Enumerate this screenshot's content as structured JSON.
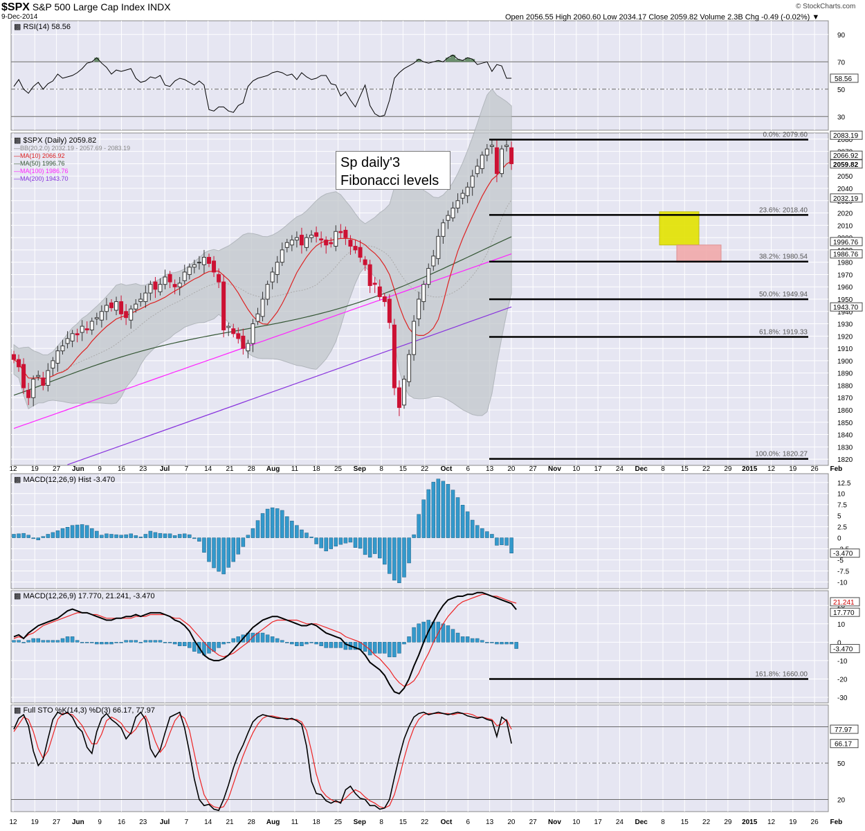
{
  "header": {
    "symbol": "$SPX",
    "name": "S&P 500 Large Cap Index",
    "exchange": "INDX",
    "date": "9-Dec-2014",
    "ohlc_line": "Open 2056.55  High 2060.60  Low 2034.17  Close 2059.82  Volume 2.3B  Chg -0.49 (-0.02%) ▼",
    "copyright": "© StockCharts.com"
  },
  "annotation": {
    "line1": "Sp daily'3",
    "line2": "Fibonacci levels"
  },
  "colors": {
    "panel_bg": "#e6e6f2",
    "grid": "#ffffff",
    "price_up": "#333333",
    "price_down": "#cc1133",
    "ma10": "#dd2222",
    "ma50": "#335533",
    "ma100": "#ff22ff",
    "ma200": "#8833dd",
    "bb": "#999999",
    "macd_hist": "#3399cc",
    "signal": "#ee2222",
    "fib": "#000000",
    "box_yellow": "#e3e300",
    "box_pink": "#f2aaaa"
  },
  "x_axis": {
    "labels": [
      "12",
      "19",
      "27",
      "Jun",
      "9",
      "16",
      "23",
      "Jul",
      "7",
      "14",
      "21",
      "28",
      "Aug",
      "11",
      "18",
      "25",
      "Sep",
      "8",
      "15",
      "22",
      "Oct",
      "6",
      "13",
      "20",
      "27",
      "Nov",
      "10",
      "17",
      "24",
      "Dec",
      "8",
      "15",
      "22",
      "29",
      "2015",
      "12",
      "19",
      "26",
      "Feb"
    ]
  },
  "chart_data": [
    {
      "type": "line",
      "title": "RSI(14) 58.56",
      "ylim": [
        20,
        100
      ],
      "y_ticks": [
        90,
        70,
        50,
        30
      ],
      "reference_lines": [
        70,
        50,
        30
      ],
      "last_value_label": "58.56",
      "values": [
        52,
        57,
        50,
        47,
        52,
        55,
        50,
        54,
        56,
        61,
        58,
        59,
        60,
        62,
        65,
        69,
        70,
        73,
        69,
        66,
        61,
        64,
        63,
        64,
        65,
        58,
        55,
        56,
        59,
        58,
        60,
        53,
        52,
        56,
        58,
        57,
        55,
        53,
        56,
        53,
        35,
        34,
        37,
        37,
        34,
        33,
        38,
        40,
        52,
        56,
        58,
        59,
        60,
        62,
        63,
        62,
        60,
        61,
        57,
        62,
        59,
        57,
        58,
        60,
        60,
        54,
        53,
        45,
        48,
        42,
        37,
        45,
        53,
        38,
        32,
        30,
        31,
        42,
        58,
        62,
        65,
        67,
        69,
        72,
        70,
        69,
        70,
        71,
        70,
        73,
        75,
        72,
        71,
        73,
        72,
        68,
        69,
        70,
        63,
        68,
        67,
        58,
        58
      ]
    },
    {
      "type": "candlestick",
      "title": "$SPX (Daily) 2059.82",
      "ylim": [
        1815,
        2085
      ],
      "y_ticks": [
        1820,
        1830,
        1840,
        1850,
        1860,
        1870,
        1880,
        1890,
        1900,
        1910,
        1920,
        1930,
        1940,
        1950,
        1960,
        1970,
        1980,
        1990,
        2000,
        2010,
        2020,
        2030,
        2040,
        2050,
        2060,
        2070,
        2080
      ],
      "legend": [
        {
          "name": "$SPX (Daily) 2059.82",
          "color": "#000000"
        },
        {
          "name": "BB(20,2.0) 2032.19 - 2057.69 - 2083.19",
          "color": "#888888"
        },
        {
          "name": "MA(10) 2066.92",
          "color": "#dd2222"
        },
        {
          "name": "MA(50) 1996.76",
          "color": "#335533"
        },
        {
          "name": "MA(100) 1986.76",
          "color": "#ff22ff"
        },
        {
          "name": "MA(200) 1943.70",
          "color": "#8833dd"
        }
      ],
      "right_labels": [
        {
          "text": "2083.19",
          "value": 2083.19,
          "style": "plain"
        },
        {
          "text": "2066.92",
          "value": 2066.92,
          "style": "plain"
        },
        {
          "text": "2059.82",
          "value": 2059.82,
          "style": "bold"
        },
        {
          "text": "2032.19",
          "value": 2032.19,
          "style": "plain"
        },
        {
          "text": "1996.76",
          "value": 1996.76,
          "style": "plain"
        },
        {
          "text": "1986.76",
          "value": 1986.76,
          "style": "plain"
        },
        {
          "text": "1943.70",
          "value": 1943.7,
          "style": "plain"
        }
      ],
      "fibonacci_levels": [
        {
          "label": "0.0%: 2079.60",
          "value": 2079.6
        },
        {
          "label": "23.6%: 2018.40",
          "value": 2018.4
        },
        {
          "label": "38.2%: 1980.54",
          "value": 1980.54
        },
        {
          "label": "50.0%: 1949.94",
          "value": 1949.94
        },
        {
          "label": "61.8%: 1919.33",
          "value": 1919.33
        },
        {
          "label": "100.0%: 1820.27",
          "value": 1820.27
        }
      ],
      "target_boxes": [
        {
          "color": "yellow",
          "y_range": [
            1994,
            2021
          ]
        },
        {
          "color": "pink",
          "y_range": [
            1980,
            1994
          ]
        }
      ],
      "closes": [
        1901,
        1895,
        1878,
        1870,
        1885,
        1888,
        1880,
        1892,
        1900,
        1908,
        1912,
        1918,
        1922,
        1921,
        1928,
        1925,
        1932,
        1935,
        1940,
        1945,
        1943,
        1948,
        1938,
        1935,
        1942,
        1946,
        1950,
        1955,
        1962,
        1958,
        1962,
        1968,
        1964,
        1960,
        1963,
        1972,
        1976,
        1978,
        1980,
        1984,
        1979,
        1972,
        1964,
        1925,
        1928,
        1922,
        1918,
        1910,
        1914,
        1930,
        1938,
        1950,
        1962,
        1972,
        1980,
        1990,
        1996,
        1998,
        2000,
        1994,
        2000,
        2002,
        2001,
        1998,
        1994,
        1995,
        2005,
        2004,
        2000,
        1993,
        1990,
        1984,
        1978,
        1961,
        1962,
        1952,
        1948,
        1931,
        1878,
        1862,
        1885,
        1905,
        1932,
        1950,
        1962,
        1975,
        1985,
        2001,
        2012,
        2018,
        2024,
        2030,
        2036,
        2041,
        2050,
        2058,
        2067,
        2072,
        2075,
        2052,
        2072,
        2075,
        2060
      ]
    },
    {
      "type": "bar",
      "title": "MACD(12,26,9) Hist -3.470",
      "ylim": [
        -11.5,
        14.5
      ],
      "y_ticks": [
        12.5,
        10,
        7.5,
        5,
        2.5,
        0,
        -2.5,
        -5,
        -7.5,
        -10
      ],
      "last_value_label": "-3.470",
      "values": [
        0.8,
        0.9,
        1.0,
        0.6,
        -0.2,
        -0.5,
        0.3,
        0.8,
        1.2,
        1.6,
        2.1,
        2.4,
        2.8,
        2.9,
        3.0,
        2.8,
        2.1,
        1.5,
        0.6,
        0.9,
        0.8,
        0.7,
        0.6,
        0.7,
        0.9,
        0.5,
        0.2,
        0.8,
        1.5,
        1.2,
        1.0,
        0.9,
        0.9,
        0.5,
        0.8,
        0.9,
        0.7,
        -0.2,
        -0.8,
        -3.3,
        -5.4,
        -6.8,
        -7.6,
        -8.2,
        -6.7,
        -5.4,
        -3.7,
        -2.0,
        0.6,
        2.1,
        3.9,
        5.5,
        6.5,
        6.8,
        6.6,
        6.2,
        4.8,
        3.8,
        2.8,
        1.8,
        1.1,
        0.2,
        -1.4,
        -2.3,
        -3.0,
        -2.5,
        -1.9,
        -1.5,
        -1.2,
        -1.0,
        -2.2,
        -2.4,
        -3.8,
        -4.4,
        -3.6,
        -4.6,
        -6.0,
        -8.1,
        -9.6,
        -10.2,
        -8.9,
        -5.7,
        0.7,
        5.3,
        8.6,
        10.9,
        12.6,
        13.3,
        12.8,
        12.1,
        10.8,
        9.1,
        7.4,
        5.9,
        4.0,
        2.8,
        2.1,
        1.4,
        0.8,
        -1.7,
        -1.6,
        -1.7,
        -3.47
      ]
    },
    {
      "type": "line",
      "title": "MACD(12,26,9) 17.770, 21.241, -3.470",
      "ylim": [
        -33,
        28
      ],
      "y_ticks": [
        20,
        10,
        0,
        -10,
        -20,
        -30
      ],
      "last_value_labels": [
        "21.241",
        "17.770",
        "-3.470"
      ],
      "series": [
        {
          "name": "MACD",
          "values": [
            3,
            4,
            2,
            5,
            7,
            9,
            10,
            11,
            12,
            13,
            15,
            17,
            18,
            17,
            16,
            16,
            15,
            14,
            13,
            12,
            12,
            13,
            13,
            14,
            14,
            15,
            14,
            15,
            16,
            16,
            16,
            15,
            14,
            12,
            11,
            9,
            6,
            1,
            -3,
            -7,
            -9,
            -10,
            -10,
            -9,
            -7,
            -4,
            -1,
            2,
            5,
            8,
            10,
            12,
            13,
            14,
            14,
            13,
            12,
            11,
            10,
            9,
            9,
            10,
            9,
            7,
            5,
            4,
            3,
            2,
            -1,
            -2,
            -3,
            -4,
            -7,
            -11,
            -13,
            -15,
            -18,
            -23,
            -27,
            -28,
            -25,
            -20,
            -13,
            -7,
            0,
            6,
            11,
            16,
            20,
            23,
            24,
            25,
            25,
            26,
            26,
            27,
            27,
            26,
            25,
            24,
            23,
            22,
            21,
            17.77
          ]
        },
        {
          "name": "Signal",
          "values": [
            2,
            3,
            2,
            4,
            5,
            7,
            9,
            10,
            11,
            12,
            13,
            14,
            15,
            16,
            16,
            16,
            15,
            15,
            14,
            13,
            13,
            13,
            13,
            13,
            13,
            14,
            14,
            14,
            15,
            15,
            15,
            15,
            14,
            13,
            13,
            11,
            9,
            6,
            3,
            0,
            -3,
            -5,
            -7,
            -8,
            -7,
            -6,
            -4,
            -2,
            0,
            3,
            5,
            7,
            9,
            11,
            12,
            12,
            12,
            12,
            12,
            11,
            10,
            10,
            10,
            9,
            8,
            7,
            6,
            5,
            3,
            2,
            1,
            0,
            -2,
            -4,
            -7,
            -9,
            -12,
            -15,
            -19,
            -22,
            -24,
            -23,
            -21,
            -17,
            -11,
            -6,
            0,
            5,
            10,
            14,
            17,
            20,
            22,
            23,
            24,
            25,
            26,
            26,
            25,
            25,
            24,
            23,
            22,
            21.241
          ]
        }
      ],
      "fibonacci_level": {
        "label": "161.8%: 1660.00",
        "value": -20
      }
    },
    {
      "type": "line",
      "title": "Full STO %K(14,3) %D(3) 66.17, 77.97",
      "ylim": [
        10,
        98
      ],
      "y_ticks": [
        80,
        50,
        20
      ],
      "reference_lines": [
        80,
        50,
        20
      ],
      "last_value_labels": [
        "77.97",
        "66.17"
      ],
      "series": [
        {
          "name": "%K",
          "values": [
            78,
            87,
            90,
            81,
            60,
            48,
            53,
            70,
            86,
            92,
            90,
            92,
            88,
            80,
            76,
            63,
            58,
            76,
            87,
            91,
            86,
            83,
            79,
            70,
            75,
            88,
            92,
            86,
            62,
            55,
            61,
            75,
            88,
            90,
            92,
            79,
            59,
            37,
            20,
            15,
            16,
            12,
            11,
            20,
            32,
            46,
            57,
            65,
            75,
            84,
            88,
            90,
            89,
            88,
            87,
            87,
            86,
            87,
            85,
            82,
            64,
            35,
            25,
            24,
            19,
            17,
            19,
            17,
            28,
            31,
            25,
            21,
            20,
            15,
            15,
            12,
            13,
            20,
            38,
            55,
            70,
            80,
            88,
            91,
            92,
            90,
            91,
            92,
            91,
            90,
            91,
            92,
            91,
            89,
            88,
            87,
            88,
            86,
            85,
            72,
            88,
            85,
            66.17
          ]
        },
        {
          "name": "%D",
          "values": [
            76,
            82,
            88,
            86,
            76,
            62,
            54,
            60,
            73,
            86,
            91,
            91,
            90,
            86,
            81,
            73,
            66,
            66,
            74,
            85,
            88,
            86,
            83,
            77,
            74,
            78,
            85,
            89,
            80,
            68,
            59,
            64,
            75,
            85,
            90,
            87,
            77,
            58,
            39,
            24,
            17,
            14,
            13,
            14,
            21,
            33,
            45,
            56,
            66,
            75,
            82,
            87,
            89,
            89,
            88,
            87,
            87,
            86,
            86,
            84,
            77,
            60,
            41,
            28,
            23,
            20,
            18,
            18,
            21,
            25,
            28,
            26,
            22,
            19,
            17,
            14,
            13,
            15,
            24,
            38,
            54,
            68,
            79,
            86,
            90,
            91,
            91,
            91,
            91,
            91,
            90,
            91,
            91,
            91,
            90,
            88,
            88,
            87,
            86,
            81,
            82,
            86,
            77.97
          ]
        }
      ]
    }
  ]
}
